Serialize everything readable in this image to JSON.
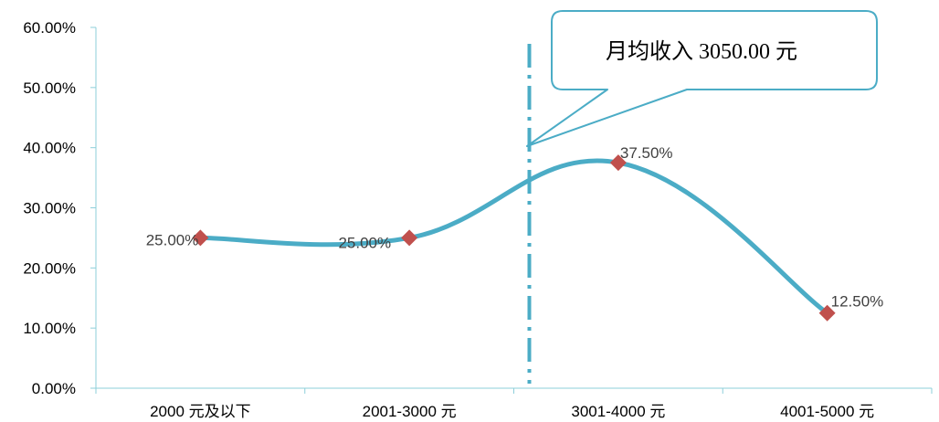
{
  "chart_data": {
    "type": "line",
    "categories": [
      "2000 元及以下",
      "2001-3000 元",
      "3001-4000 元",
      "4001-5000 元"
    ],
    "values": [
      25.0,
      25.0,
      37.5,
      12.5
    ],
    "data_labels": [
      "25.00%",
      "25.00%",
      "37.50%",
      "12.50%"
    ],
    "ylim": [
      0,
      60
    ],
    "yticks": [
      0,
      10,
      20,
      30,
      40,
      50,
      60
    ],
    "ytick_labels": [
      "0.00%",
      "10.00%",
      "20.00%",
      "30.00%",
      "40.00%",
      "50.00%",
      "60.00%"
    ],
    "title": "",
    "xlabel": "",
    "ylabel": "",
    "legend": "none",
    "grid": false,
    "smooth": true,
    "series_color": "#4BACC6",
    "marker_color": "#C0504D",
    "axis_color": "#8ECFDA",
    "annotation": {
      "text": "月均收入 3050.00 元",
      "vline_x": 3050
    }
  }
}
